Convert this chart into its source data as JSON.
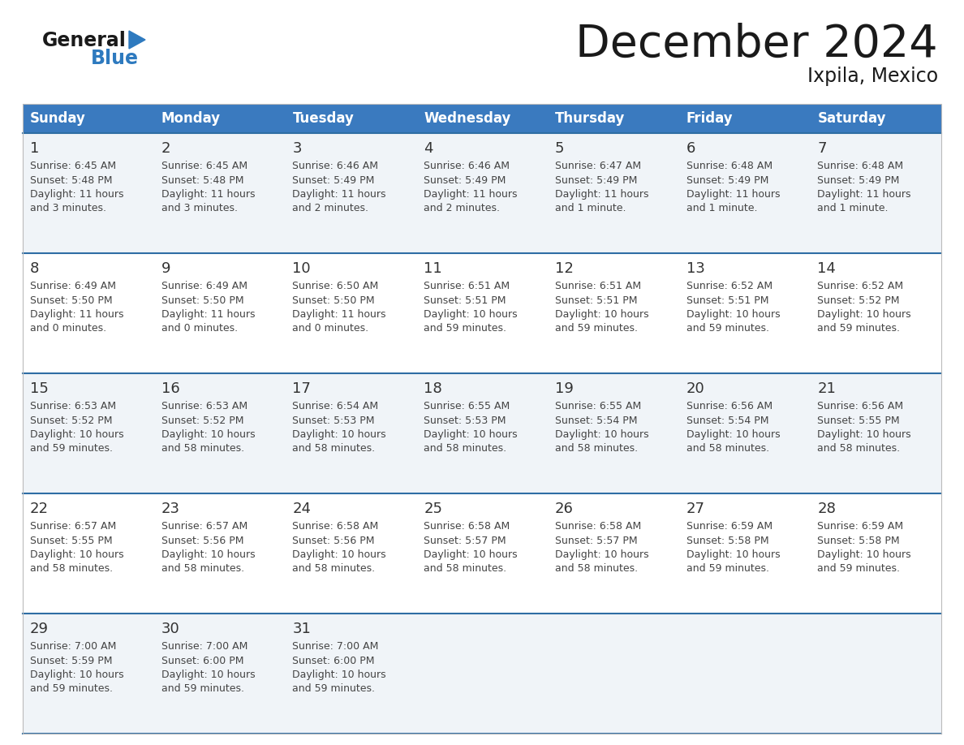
{
  "title": "December 2024",
  "subtitle": "Ixpila, Mexico",
  "days_of_week": [
    "Sunday",
    "Monday",
    "Tuesday",
    "Wednesday",
    "Thursday",
    "Friday",
    "Saturday"
  ],
  "header_bg": "#3a7abf",
  "header_text": "#ffffff",
  "row_bg_light": "#f0f4f8",
  "row_bg_white": "#ffffff",
  "cell_text_color": "#444444",
  "day_number_color": "#333333",
  "separator_color": "#2e6da4",
  "logo_general_color": "#1a1a1a",
  "logo_blue_color": "#2e7abf",
  "calendar": [
    [
      {
        "day": 1,
        "sunrise": "6:45 AM",
        "sunset": "5:48 PM",
        "daylight": "11 hours",
        "daylight2": "and 3 minutes."
      },
      {
        "day": 2,
        "sunrise": "6:45 AM",
        "sunset": "5:48 PM",
        "daylight": "11 hours",
        "daylight2": "and 3 minutes."
      },
      {
        "day": 3,
        "sunrise": "6:46 AM",
        "sunset": "5:49 PM",
        "daylight": "11 hours",
        "daylight2": "and 2 minutes."
      },
      {
        "day": 4,
        "sunrise": "6:46 AM",
        "sunset": "5:49 PM",
        "daylight": "11 hours",
        "daylight2": "and 2 minutes."
      },
      {
        "day": 5,
        "sunrise": "6:47 AM",
        "sunset": "5:49 PM",
        "daylight": "11 hours",
        "daylight2": "and 1 minute."
      },
      {
        "day": 6,
        "sunrise": "6:48 AM",
        "sunset": "5:49 PM",
        "daylight": "11 hours",
        "daylight2": "and 1 minute."
      },
      {
        "day": 7,
        "sunrise": "6:48 AM",
        "sunset": "5:49 PM",
        "daylight": "11 hours",
        "daylight2": "and 1 minute."
      }
    ],
    [
      {
        "day": 8,
        "sunrise": "6:49 AM",
        "sunset": "5:50 PM",
        "daylight": "11 hours",
        "daylight2": "and 0 minutes."
      },
      {
        "day": 9,
        "sunrise": "6:49 AM",
        "sunset": "5:50 PM",
        "daylight": "11 hours",
        "daylight2": "and 0 minutes."
      },
      {
        "day": 10,
        "sunrise": "6:50 AM",
        "sunset": "5:50 PM",
        "daylight": "11 hours",
        "daylight2": "and 0 minutes."
      },
      {
        "day": 11,
        "sunrise": "6:51 AM",
        "sunset": "5:51 PM",
        "daylight": "10 hours",
        "daylight2": "and 59 minutes."
      },
      {
        "day": 12,
        "sunrise": "6:51 AM",
        "sunset": "5:51 PM",
        "daylight": "10 hours",
        "daylight2": "and 59 minutes."
      },
      {
        "day": 13,
        "sunrise": "6:52 AM",
        "sunset": "5:51 PM",
        "daylight": "10 hours",
        "daylight2": "and 59 minutes."
      },
      {
        "day": 14,
        "sunrise": "6:52 AM",
        "sunset": "5:52 PM",
        "daylight": "10 hours",
        "daylight2": "and 59 minutes."
      }
    ],
    [
      {
        "day": 15,
        "sunrise": "6:53 AM",
        "sunset": "5:52 PM",
        "daylight": "10 hours",
        "daylight2": "and 59 minutes."
      },
      {
        "day": 16,
        "sunrise": "6:53 AM",
        "sunset": "5:52 PM",
        "daylight": "10 hours",
        "daylight2": "and 58 minutes."
      },
      {
        "day": 17,
        "sunrise": "6:54 AM",
        "sunset": "5:53 PM",
        "daylight": "10 hours",
        "daylight2": "and 58 minutes."
      },
      {
        "day": 18,
        "sunrise": "6:55 AM",
        "sunset": "5:53 PM",
        "daylight": "10 hours",
        "daylight2": "and 58 minutes."
      },
      {
        "day": 19,
        "sunrise": "6:55 AM",
        "sunset": "5:54 PM",
        "daylight": "10 hours",
        "daylight2": "and 58 minutes."
      },
      {
        "day": 20,
        "sunrise": "6:56 AM",
        "sunset": "5:54 PM",
        "daylight": "10 hours",
        "daylight2": "and 58 minutes."
      },
      {
        "day": 21,
        "sunrise": "6:56 AM",
        "sunset": "5:55 PM",
        "daylight": "10 hours",
        "daylight2": "and 58 minutes."
      }
    ],
    [
      {
        "day": 22,
        "sunrise": "6:57 AM",
        "sunset": "5:55 PM",
        "daylight": "10 hours",
        "daylight2": "and 58 minutes."
      },
      {
        "day": 23,
        "sunrise": "6:57 AM",
        "sunset": "5:56 PM",
        "daylight": "10 hours",
        "daylight2": "and 58 minutes."
      },
      {
        "day": 24,
        "sunrise": "6:58 AM",
        "sunset": "5:56 PM",
        "daylight": "10 hours",
        "daylight2": "and 58 minutes."
      },
      {
        "day": 25,
        "sunrise": "6:58 AM",
        "sunset": "5:57 PM",
        "daylight": "10 hours",
        "daylight2": "and 58 minutes."
      },
      {
        "day": 26,
        "sunrise": "6:58 AM",
        "sunset": "5:57 PM",
        "daylight": "10 hours",
        "daylight2": "and 58 minutes."
      },
      {
        "day": 27,
        "sunrise": "6:59 AM",
        "sunset": "5:58 PM",
        "daylight": "10 hours",
        "daylight2": "and 59 minutes."
      },
      {
        "day": 28,
        "sunrise": "6:59 AM",
        "sunset": "5:58 PM",
        "daylight": "10 hours",
        "daylight2": "and 59 minutes."
      }
    ],
    [
      {
        "day": 29,
        "sunrise": "7:00 AM",
        "sunset": "5:59 PM",
        "daylight": "10 hours",
        "daylight2": "and 59 minutes."
      },
      {
        "day": 30,
        "sunrise": "7:00 AM",
        "sunset": "6:00 PM",
        "daylight": "10 hours",
        "daylight2": "and 59 minutes."
      },
      {
        "day": 31,
        "sunrise": "7:00 AM",
        "sunset": "6:00 PM",
        "daylight": "10 hours",
        "daylight2": "and 59 minutes."
      },
      null,
      null,
      null,
      null
    ]
  ],
  "fig_width": 11.88,
  "fig_height": 9.18,
  "dpi": 100
}
